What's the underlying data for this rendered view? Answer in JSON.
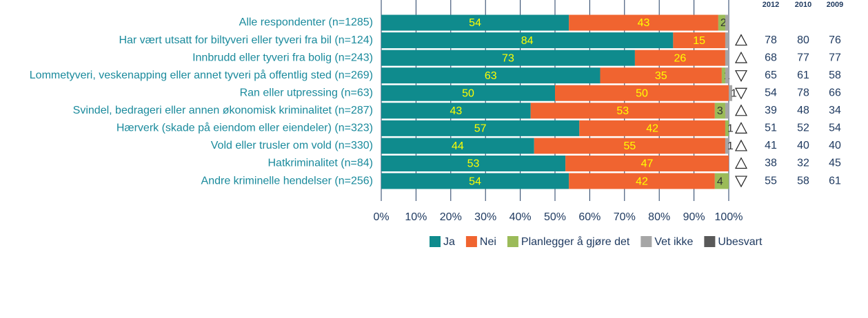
{
  "chart_data": {
    "type": "stacked-bar-horizontal",
    "categories": [
      "Alle respondenter (n=1285)",
      "Har vært utsatt for biltyveri eller tyveri fra bil (n=124)",
      "Innbrudd eller tyveri fra bolig (n=243)",
      "Lommetyveri, veskenapping eller annet tyveri på offentlig sted (n=269)",
      "Ran eller utpressing (n=63)",
      "Svindel, bedrageri eller annen økonomisk kriminalitet (n=287)",
      "Hærverk (skade på eiendom eller eiendeler) (n=323)",
      "Vold eller trusler om vold (n=330)",
      "Hatkriminalitet (n=84)",
      "Andre kriminelle hendelser (n=256)"
    ],
    "series": [
      {
        "name": "Ja",
        "color": "#0f8b8d",
        "label_color": "#ffff00",
        "values": [
          54,
          84,
          73,
          63,
          50,
          43,
          57,
          44,
          53,
          54
        ],
        "value_labels": [
          "54",
          "84",
          "73",
          "63",
          "50",
          "43",
          "57",
          "44",
          "53",
          "54"
        ]
      },
      {
        "name": "Nei",
        "color": "#f06430",
        "label_color": "#ffff00",
        "values": [
          43,
          15,
          26,
          35,
          50,
          53,
          42,
          55,
          47,
          42
        ],
        "value_labels": [
          "43",
          "15",
          "26",
          "35",
          "50",
          "53",
          "42",
          "55",
          "47",
          "42"
        ]
      },
      {
        "name": "Planlegger å gjøre det",
        "color": "#9bbb59",
        "label_color": "#333333",
        "values": [
          2,
          0,
          0,
          1,
          0,
          3,
          1,
          0,
          0,
          4
        ],
        "value_labels": [
          "2",
          null,
          null,
          "1",
          null,
          "3",
          "1",
          null,
          null,
          "4"
        ]
      },
      {
        "name": "Vet ikke",
        "color": "#a6a6a6",
        "label_color": "#333333",
        "values": [
          1,
          1,
          1,
          1,
          1,
          1,
          0,
          1,
          0,
          0
        ],
        "value_labels": [
          null,
          null,
          null,
          null,
          "1",
          null,
          null,
          "1",
          null,
          null
        ]
      },
      {
        "name": "Ubesvart",
        "color": "#595959",
        "label_color": "#ffffff",
        "values": [
          0,
          0,
          0,
          0,
          0,
          0,
          0,
          0,
          0,
          0
        ],
        "value_labels": [
          null,
          null,
          null,
          null,
          null,
          null,
          null,
          null,
          null,
          null
        ]
      }
    ],
    "xlim": [
      0,
      100
    ],
    "xticks": [
      {
        "value": 0,
        "label": "0%"
      },
      {
        "value": 10,
        "label": "10%"
      },
      {
        "value": 20,
        "label": "20%"
      },
      {
        "value": 30,
        "label": "30%"
      },
      {
        "value": 40,
        "label": "40%"
      },
      {
        "value": 50,
        "label": "50%"
      },
      {
        "value": 60,
        "label": "60%"
      },
      {
        "value": 70,
        "label": "70%"
      },
      {
        "value": 80,
        "label": "80%"
      },
      {
        "value": 90,
        "label": "90%"
      },
      {
        "value": 100,
        "label": "100%"
      }
    ],
    "grid": true,
    "trend": [
      null,
      "up",
      "up",
      "down",
      "down",
      "up",
      "up",
      "up",
      "up",
      "down"
    ],
    "comparison": [
      {
        "name": "2012",
        "values": [
          null,
          78,
          68,
          65,
          54,
          39,
          51,
          41,
          38,
          55
        ]
      },
      {
        "name": "2010",
        "values": [
          null,
          80,
          77,
          61,
          78,
          48,
          52,
          40,
          32,
          58
        ]
      },
      {
        "name": "2009",
        "values": [
          null,
          76,
          77,
          58,
          66,
          34,
          54,
          40,
          45,
          61
        ]
      }
    ]
  }
}
